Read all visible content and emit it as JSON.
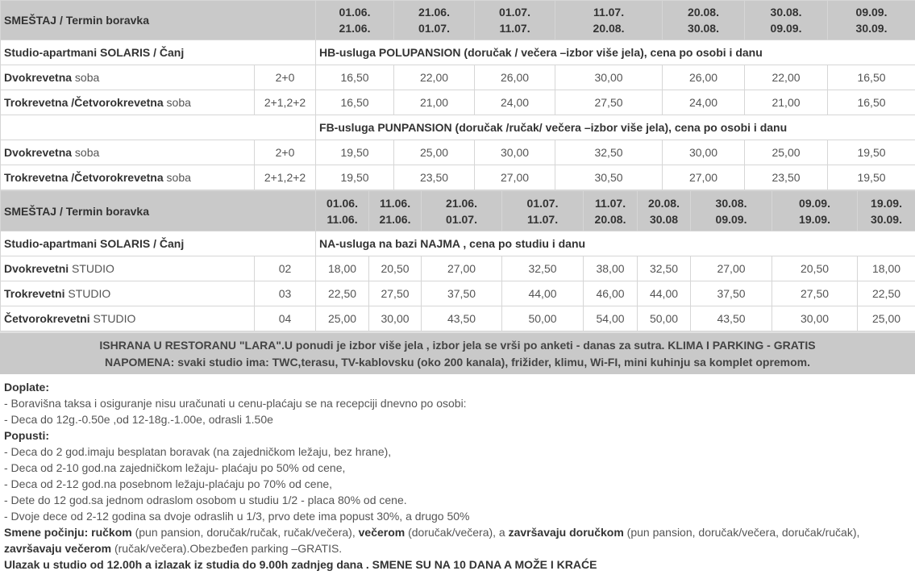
{
  "table1": {
    "header": {
      "label": "SMEŠTAJ / Termin boravka",
      "periods": [
        [
          "01.06.",
          "21.06."
        ],
        [
          "21.06.",
          "01.07."
        ],
        [
          "01.07.",
          "11.07."
        ],
        [
          "11.07.",
          "20.08."
        ],
        [
          "20.08.",
          "30.08."
        ],
        [
          "30.08.",
          "09.09."
        ],
        [
          "09.09.",
          "30.09."
        ]
      ]
    },
    "hotel": "Studio-apartmani  SOLARIS  / Čanj",
    "hb": {
      "title": "HB-usluga POLUPANSION (doručak / večera –izbor više jela), cena po osobi i danu",
      "rows": [
        {
          "bold": "Dvokrevetna",
          "rest": " soba",
          "beds": "2+0",
          "prices": [
            "16,50",
            "22,00",
            "26,00",
            "30,00",
            "26,00",
            "22,00",
            "16,50"
          ]
        },
        {
          "bold": "Trokrevetna /Četvorokrevetna",
          "rest": " soba",
          "beds": "2+1,2+2",
          "prices": [
            "16,50",
            "21,00",
            "24,00",
            "27,50",
            "24,00",
            "21,00",
            "16,50"
          ]
        }
      ]
    },
    "fb": {
      "title": "FB-usluga PUNPANSION (doručak /ručak/ večera –izbor više jela), cena po osobi i danu",
      "rows": [
        {
          "bold": "Dvokrevetna",
          "rest": " soba",
          "beds": "2+0",
          "prices": [
            "19,50",
            "25,00",
            "30,00",
            "32,50",
            "30,00",
            "25,00",
            "19,50"
          ]
        },
        {
          "bold": "Trokrevetna /Četvorokrevetna",
          "rest": " soba",
          "beds": "2+1,2+2",
          "prices": [
            "19,50",
            "23,50",
            "27,00",
            "30,50",
            "27,00",
            "23,50",
            "19,50"
          ]
        }
      ]
    }
  },
  "table2": {
    "header": {
      "label": "SMEŠTAJ / Termin boravka",
      "periods": [
        [
          "01.06.",
          "11.06."
        ],
        [
          "11.06.",
          "21.06."
        ],
        [
          "21.06.",
          "01.07."
        ],
        [
          "01.07.",
          "11.07."
        ],
        [
          "11.07.",
          "20.08."
        ],
        [
          "20.08.",
          "30.08"
        ],
        [
          "30.08.",
          "09.09."
        ],
        [
          "09.09.",
          "19.09."
        ],
        [
          "19.09.",
          "30.09."
        ]
      ]
    },
    "hotel": "Studio-apartmani  SOLARIS / Čanj",
    "title": "NA-usluga na bazi NAJMA , cena po studiu  i danu",
    "rows": [
      {
        "bold": "Dvokrevetni",
        "rest": "  STUDIO",
        "beds": "02",
        "prices": [
          "18,00",
          "20,50",
          "27,00",
          "32,50",
          "38,00",
          "32,50",
          "27,00",
          "20,50",
          "18,00"
        ]
      },
      {
        "bold": "Trokrevetni",
        "rest": "   STUDIO",
        "beds": "03",
        "prices": [
          "22,50",
          "27,50",
          "37,50",
          "44,00",
          "46,00",
          "44,00",
          "37,50",
          "27,50",
          "22,50"
        ]
      },
      {
        "bold": "Četvorokrevetni",
        "rest": " STUDIO",
        "beds": "04",
        "prices": [
          "25,00",
          "30,00",
          "43,50",
          "50,00",
          "54,00",
          "50,00",
          "43,50",
          "30,00",
          "25,00"
        ]
      }
    ]
  },
  "note": {
    "line1": "ISHRANA U RESTORANU \"LARA\".U ponudi je izbor više jela , izbor jela se vrši po anketi - danas za sutra. KLIMA I PARKING - GRATIS",
    "line2": "NAPOMENA: svaki studio ima: TWC,terasu, TV-kablovsku (oko 200 kanala), frižider, klimu, Wi-FI, mini kuhinju sa komplet opremom."
  },
  "info": [
    [
      {
        "b": "Doplate:"
      }
    ],
    [
      {
        "t": "- Boravišna taksa i osiguranje nisu uračunati u cenu-plaćaju se na recepciji dnevno po osobi:"
      }
    ],
    [
      {
        "t": "- Deca do 12g.-0.50e ,od 12-18g.-1.00e, odrasli 1.50e"
      }
    ],
    [
      {
        "b": "Popusti:"
      }
    ],
    [
      {
        "t": "- Deca do 2 god.imaju besplatan boravak (na zajedničkom ležaju, bez hrane),"
      }
    ],
    [
      {
        "t": "- Deca od 2-10 god.na zajedničkom ležaju- plaćaju po 50% od cene,"
      }
    ],
    [
      {
        "t": "- Deca od 2-12 god.na posebnom ležaju-plaćaju po 70% od cene,"
      }
    ],
    [
      {
        "t": "- Dete do 12 god.sa jednom odraslom osobom u studiu 1/2 - placa 80% od cene."
      }
    ],
    [
      {
        "t": "- Dvoje dece od 2-12 godina sa dvoje odraslih u 1/3, prvo dete ima popust 30%, a drugo 50%"
      }
    ],
    [
      {
        "b": "Smene počinju: ručkom"
      },
      {
        "t": " (pun pansion, doručak/ručak, ručak/večera), "
      },
      {
        "b": "večerom"
      },
      {
        "t": " (doručak/večera), a "
      },
      {
        "b": "završavaju doručkom"
      },
      {
        "t": " (pun pansion, doručak/večera, doručak/ručak),"
      }
    ],
    [
      {
        "b": "završavaju večerom"
      },
      {
        "t": " (ručak/večera).Obezbeđen parking –GRATIS."
      }
    ],
    [
      {
        "b": "Ulazak u studio od 12.00h a izlazak iz studia do 9.00h zadnjeg dana .  SMENE SU NA 10 DANA A MOŽE I KRAĆE"
      }
    ]
  ]
}
